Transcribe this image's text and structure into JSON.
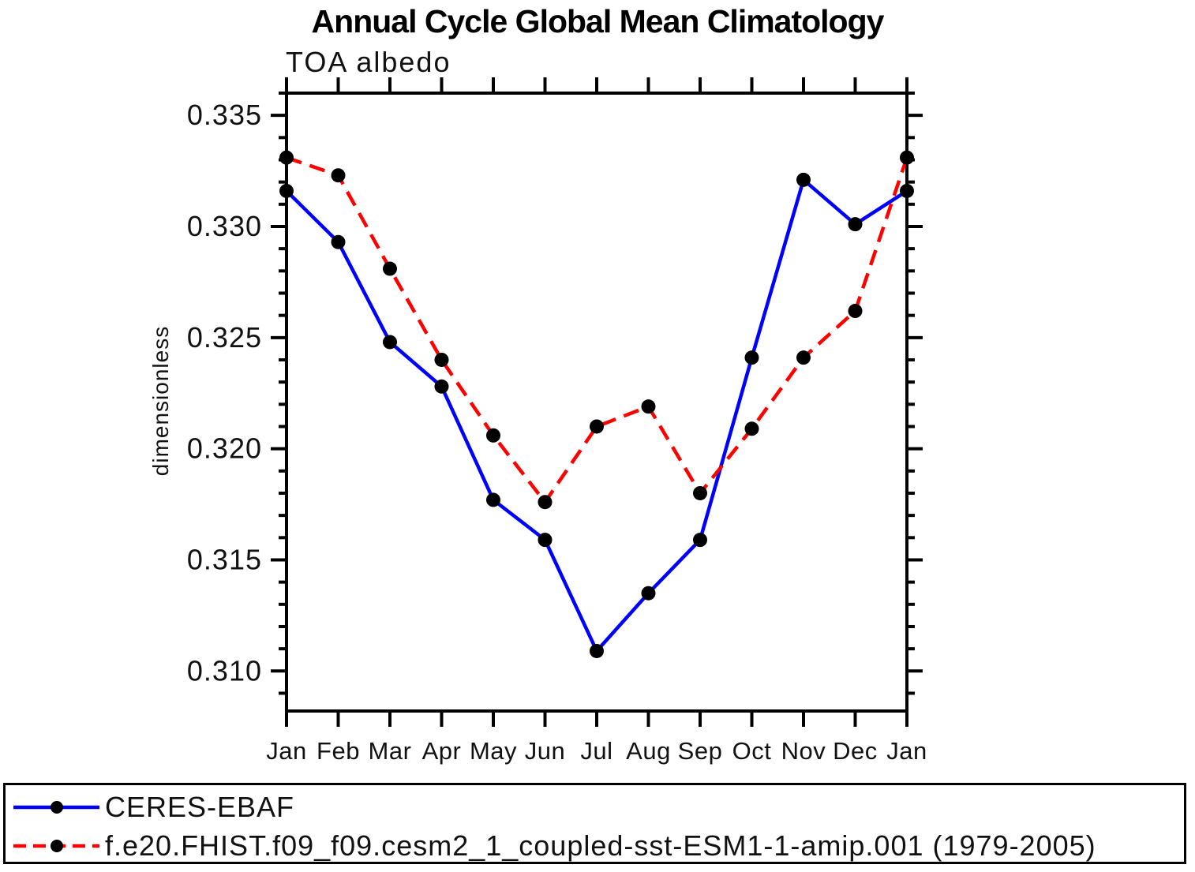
{
  "page": {
    "background": "#ffffff",
    "text_color": "#000000"
  },
  "chart_data": {
    "type": "line",
    "title": "Annual Cycle Global Mean Climatology",
    "subtitle": "TOA albedo",
    "xlabel": "",
    "ylabel": "dimensionless",
    "x_tick_labels": [
      "Jan",
      "Feb",
      "Mar",
      "Apr",
      "May",
      "Jun",
      "Jul",
      "Aug",
      "Sep",
      "Oct",
      "Nov",
      "Dec",
      "Jan"
    ],
    "y_tick_labels": [
      "0.335",
      "0.330",
      "0.325",
      "0.320",
      "0.315",
      "0.310"
    ],
    "y_major_ticks": [
      0.335,
      0.33,
      0.325,
      0.32,
      0.315,
      0.31
    ],
    "y_minor_step": 0.001,
    "ylim": [
      0.3082,
      0.336
    ],
    "grid": false,
    "frame_color": "#000000",
    "marker_color": "#000000",
    "legend_position": "bottom-box",
    "series": [
      {
        "name": "CERES-EBAF",
        "color": "#0000ff",
        "style": "solid",
        "marker": "black-dot",
        "values": [
          0.3316,
          0.3293,
          0.3248,
          0.3228,
          0.3177,
          0.3159,
          0.3109,
          0.3135,
          0.3159,
          0.3241,
          0.3321,
          0.3301,
          0.3316
        ]
      },
      {
        "name": "f.e20.FHIST.f09_f09.cesm2_1_coupled-sst-ESM1-1-amip.001 (1979-2005)",
        "color": "#ff0000",
        "style": "dashed",
        "marker": "black-dot",
        "values": [
          0.3331,
          0.3323,
          0.3281,
          0.324,
          0.3206,
          0.3176,
          0.321,
          0.3219,
          0.318,
          0.3209,
          0.3241,
          0.3262,
          0.3331
        ]
      }
    ]
  }
}
